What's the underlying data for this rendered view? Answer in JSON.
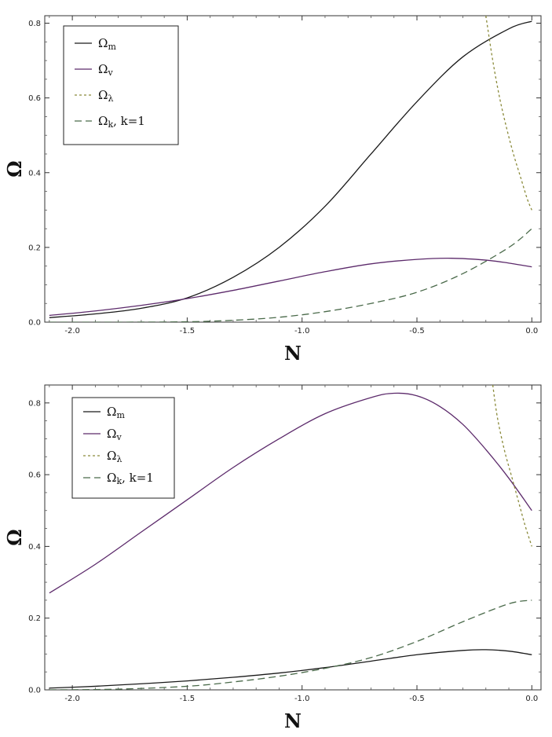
{
  "chart_data": [
    {
      "type": "line",
      "title": "",
      "xlabel": "N",
      "ylabel": "Ω",
      "xlim": [
        -2.12,
        0.04
      ],
      "ylim": [
        0,
        0.82
      ],
      "xticks": [
        -2.0,
        -1.5,
        -1.0,
        -0.5,
        0.0
      ],
      "xtick_labels": [
        "-2.0",
        "-1.5",
        "-1.0",
        "-0.5",
        "0.0"
      ],
      "yticks": [
        0.0,
        0.2,
        0.4,
        0.6,
        0.8
      ],
      "ytick_labels": [
        "0.0",
        "0.2",
        "0.4",
        "0.6",
        "0.8"
      ],
      "grid": false,
      "legend_position": "top-left",
      "series": [
        {
          "key": "m",
          "symbol": "Ω",
          "subscript": "m",
          "suffix": "",
          "color": "#1a1a1a",
          "dash": "solid",
          "x": [
            -2.1,
            -1.9,
            -1.7,
            -1.5,
            -1.3,
            -1.1,
            -0.9,
            -0.7,
            -0.5,
            -0.3,
            -0.1,
            0.0
          ],
          "y": [
            0.012,
            0.022,
            0.037,
            0.065,
            0.12,
            0.2,
            0.31,
            0.45,
            0.59,
            0.71,
            0.785,
            0.805
          ]
        },
        {
          "key": "v",
          "symbol": "Ω",
          "subscript": "v",
          "suffix": "",
          "color": "#5c2a6b",
          "dash": "solid",
          "x": [
            -2.1,
            -1.9,
            -1.7,
            -1.5,
            -1.3,
            -1.1,
            -0.9,
            -0.7,
            -0.5,
            -0.35,
            -0.2,
            -0.1,
            0.0
          ],
          "y": [
            0.018,
            0.03,
            0.045,
            0.063,
            0.085,
            0.11,
            0.135,
            0.156,
            0.168,
            0.171,
            0.166,
            0.158,
            0.148
          ]
        },
        {
          "key": "lambda",
          "symbol": "Ω",
          "subscript": "λ",
          "suffix": "",
          "color": "#8a8a3a",
          "dash": "3,3",
          "x": [
            -0.2,
            -0.17,
            -0.14,
            -0.11,
            -0.08,
            -0.05,
            -0.02,
            0.0
          ],
          "y": [
            0.82,
            0.7,
            0.6,
            0.52,
            0.45,
            0.39,
            0.33,
            0.3
          ]
        },
        {
          "key": "k",
          "symbol": "Ω",
          "subscript": "k",
          "suffix": ", k=1",
          "color": "#4a6a4a",
          "dash": "9,5",
          "x": [
            -2.1,
            -1.8,
            -1.5,
            -1.3,
            -1.1,
            -0.9,
            -0.7,
            -0.5,
            -0.3,
            -0.1,
            0.0
          ],
          "y": [
            0.0,
            0.0,
            0.001,
            0.005,
            0.013,
            0.028,
            0.05,
            0.08,
            0.13,
            0.2,
            0.25
          ]
        }
      ]
    },
    {
      "type": "line",
      "title": "",
      "xlabel": "N",
      "ylabel": "Ω",
      "xlim": [
        -2.12,
        0.04
      ],
      "ylim": [
        0,
        0.85
      ],
      "xticks": [
        -2.0,
        -1.5,
        -1.0,
        -0.5,
        0.0
      ],
      "xtick_labels": [
        "-2.0",
        "-1.5",
        "-1.0",
        "-0.5",
        "0.0"
      ],
      "yticks": [
        0.0,
        0.2,
        0.4,
        0.6,
        0.8
      ],
      "ytick_labels": [
        "0.0",
        "0.2",
        "0.4",
        "0.6",
        "0.8"
      ],
      "grid": false,
      "legend_position": "top-left",
      "series": [
        {
          "key": "m",
          "symbol": "Ω",
          "subscript": "m",
          "suffix": "",
          "color": "#1a1a1a",
          "dash": "solid",
          "x": [
            -2.1,
            -1.9,
            -1.7,
            -1.5,
            -1.3,
            -1.1,
            -0.9,
            -0.7,
            -0.5,
            -0.3,
            -0.2,
            -0.1,
            0.0
          ],
          "y": [
            0.005,
            0.01,
            0.017,
            0.025,
            0.035,
            0.047,
            0.062,
            0.08,
            0.098,
            0.11,
            0.112,
            0.108,
            0.098
          ]
        },
        {
          "key": "v",
          "symbol": "Ω",
          "subscript": "v",
          "suffix": "",
          "color": "#5c2a6b",
          "dash": "solid",
          "x": [
            -2.1,
            -1.9,
            -1.7,
            -1.5,
            -1.3,
            -1.1,
            -0.9,
            -0.7,
            -0.6,
            -0.5,
            -0.4,
            -0.3,
            -0.2,
            -0.1,
            0.0
          ],
          "y": [
            0.27,
            0.35,
            0.44,
            0.53,
            0.62,
            0.7,
            0.77,
            0.815,
            0.827,
            0.82,
            0.79,
            0.74,
            0.67,
            0.59,
            0.5
          ]
        },
        {
          "key": "lambda",
          "symbol": "Ω",
          "subscript": "λ",
          "suffix": "",
          "color": "#8a8a3a",
          "dash": "3,3",
          "x": [
            -0.17,
            -0.15,
            -0.12,
            -0.09,
            -0.06,
            -0.03,
            0.0
          ],
          "y": [
            0.85,
            0.76,
            0.67,
            0.6,
            0.53,
            0.46,
            0.4
          ]
        },
        {
          "key": "k",
          "symbol": "Ω",
          "subscript": "k",
          "suffix": ", k=1",
          "color": "#4a6a4a",
          "dash": "9,5",
          "x": [
            -2.1,
            -1.8,
            -1.5,
            -1.3,
            -1.1,
            -0.9,
            -0.7,
            -0.5,
            -0.3,
            -0.1,
            0.0
          ],
          "y": [
            0.0,
            0.002,
            0.01,
            0.022,
            0.038,
            0.06,
            0.09,
            0.135,
            0.19,
            0.24,
            0.25
          ]
        }
      ]
    }
  ]
}
